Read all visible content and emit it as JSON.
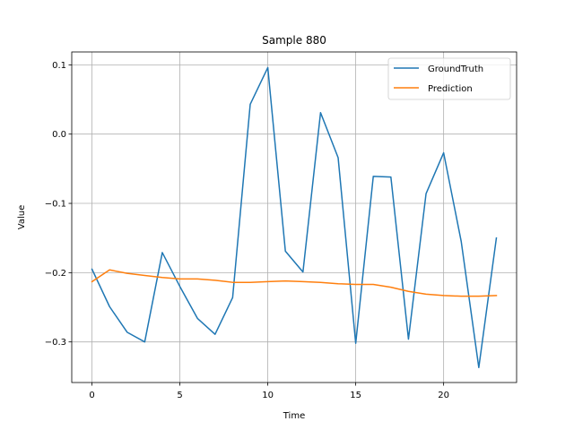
{
  "chart_data": {
    "type": "line",
    "title": "Sample 880",
    "xlabel": "Time",
    "ylabel": "Value",
    "xlim": [
      -1.15,
      24.15
    ],
    "ylim": [
      -0.3586,
      0.1186
    ],
    "grid": true,
    "legend_position": "top-right",
    "x_ticks": [
      0,
      5,
      10,
      15,
      20
    ],
    "y_ticks": [
      -0.3,
      -0.2,
      -0.1,
      0.0,
      0.1
    ],
    "y_tick_labels": [
      "−0.3",
      "−0.2",
      "−0.1",
      "0.0",
      "0.1"
    ],
    "x": [
      0,
      1,
      2,
      3,
      4,
      5,
      6,
      7,
      8,
      9,
      10,
      11,
      12,
      13,
      14,
      15,
      16,
      17,
      18,
      19,
      20,
      21,
      22,
      23
    ],
    "series": [
      {
        "name": "GroundTruth",
        "color": "#1f77b4",
        "values": [
          -0.195,
          -0.249,
          -0.286,
          -0.3,
          -0.171,
          -0.22,
          -0.266,
          -0.289,
          -0.236,
          0.043,
          0.096,
          -0.169,
          -0.199,
          0.031,
          -0.034,
          -0.302,
          -0.061,
          -0.062,
          -0.296,
          -0.086,
          -0.027,
          -0.155,
          -0.337,
          -0.15
        ]
      },
      {
        "name": "Prediction",
        "color": "#ff7f0e",
        "values": [
          -0.213,
          -0.196,
          -0.201,
          -0.204,
          -0.207,
          -0.209,
          -0.209,
          -0.211,
          -0.214,
          -0.214,
          -0.213,
          -0.212,
          -0.213,
          -0.214,
          -0.216,
          -0.217,
          -0.217,
          -0.221,
          -0.227,
          -0.231,
          -0.233,
          -0.234,
          -0.234,
          -0.233
        ]
      }
    ]
  }
}
